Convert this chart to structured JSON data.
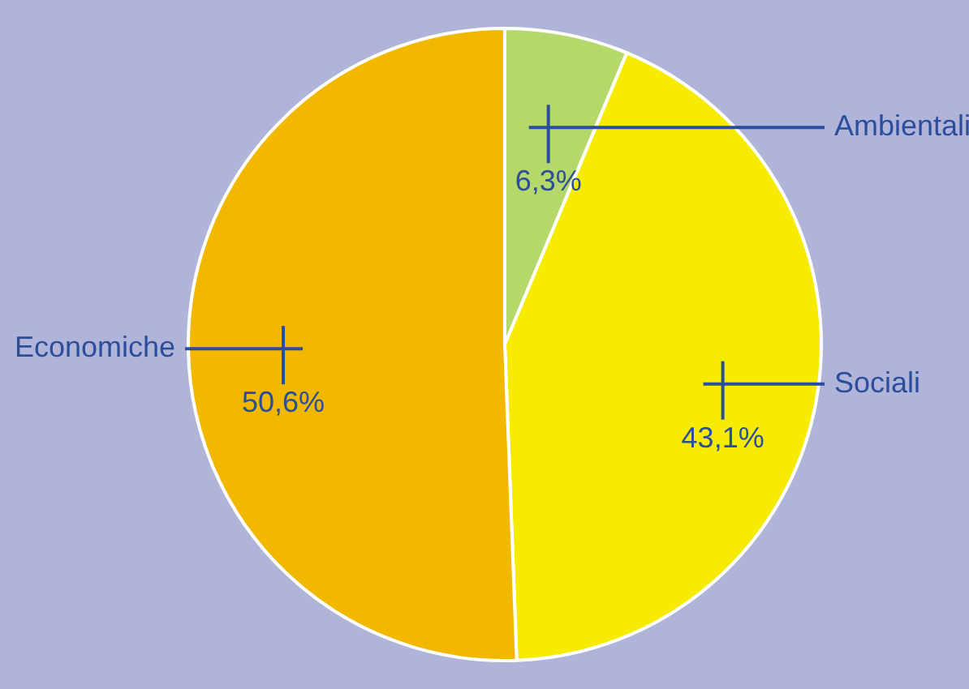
{
  "chart_data": {
    "type": "pie",
    "categories": [
      "Ambientali",
      "Sociali",
      "Economiche"
    ],
    "values": [
      6.3,
      43.1,
      50.6
    ],
    "colors": [
      "#b5d86a",
      "#f7ec00",
      "#f2b800"
    ],
    "value_labels": [
      "6,3%",
      "43,1%",
      "50,6%"
    ],
    "legend": false
  }
}
